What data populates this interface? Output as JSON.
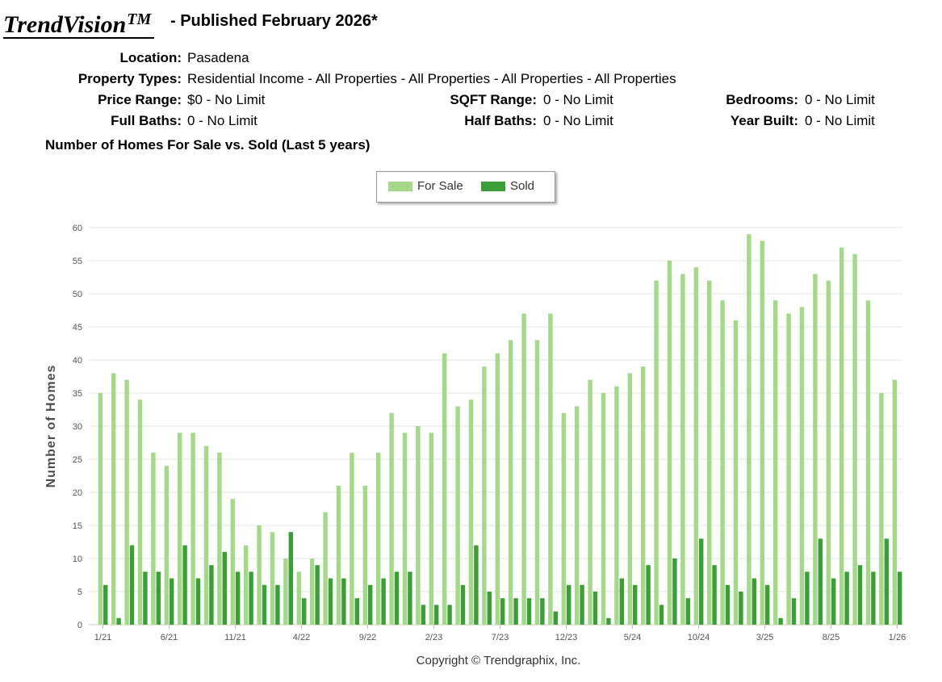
{
  "header": {
    "brand": "TrendVision",
    "brand_tm": "TM",
    "published": "- Published February 2026*"
  },
  "filters": {
    "location_label": "Location:",
    "location": "Pasadena",
    "property_types_label": "Property Types:",
    "property_types": "Residential Income - All Properties - All Properties - All Properties - All Properties",
    "price_range_label": "Price Range:",
    "price_range": "$0 - No Limit",
    "sqft_range_label": "SQFT Range:",
    "sqft_range": "0 - No Limit",
    "bedrooms_label": "Bedrooms:",
    "bedrooms": "0 - No Limit",
    "full_baths_label": "Full Baths:",
    "full_baths": "0 - No Limit",
    "half_baths_label": "Half Baths:",
    "half_baths": "0 - No Limit",
    "year_built_label": "Year Built:",
    "year_built": "0 - No Limit"
  },
  "chart_title": "Number of Homes For Sale vs. Sold (Last 5 years)",
  "copyright": "Copyright © Trendgraphix, Inc.",
  "colors": {
    "for_sale": "#a3d987",
    "sold": "#3a9f37",
    "grid": "#e6e6e6",
    "axis_text": "#555555"
  },
  "chart_data": {
    "type": "bar",
    "title": "Number of Homes For Sale vs. Sold (Last 5 years)",
    "ylabel": "Number of Homes",
    "xlabel": "",
    "ylim": [
      0,
      60
    ],
    "yticks": [
      0,
      5,
      10,
      15,
      20,
      25,
      30,
      35,
      40,
      45,
      50,
      55,
      60
    ],
    "legend_position": "top-center",
    "grid": true,
    "categories": [
      "1/21",
      "2/21",
      "3/21",
      "4/21",
      "5/21",
      "6/21",
      "7/21",
      "8/21",
      "9/21",
      "10/21",
      "11/21",
      "12/21",
      "1/22",
      "2/22",
      "3/22",
      "4/22",
      "5/22",
      "6/22",
      "7/22",
      "8/22",
      "9/22",
      "10/22",
      "11/22",
      "12/22",
      "1/23",
      "2/23",
      "3/23",
      "4/23",
      "5/23",
      "6/23",
      "7/23",
      "8/23",
      "9/23",
      "10/23",
      "11/23",
      "12/23",
      "1/24",
      "2/24",
      "3/24",
      "4/24",
      "5/24",
      "6/24",
      "7/24",
      "8/24",
      "9/24",
      "10/24",
      "11/24",
      "12/24",
      "1/25",
      "2/25",
      "3/25",
      "4/25",
      "5/25",
      "6/25",
      "7/25",
      "8/25",
      "9/25",
      "10/25",
      "11/25",
      "12/25",
      "1/26"
    ],
    "tick_labels": [
      "1/21",
      "6/21",
      "11/21",
      "4/22",
      "9/22",
      "2/23",
      "7/23",
      "12/23",
      "5/24",
      "10/24",
      "3/25",
      "8/25",
      "1/26"
    ],
    "series": [
      {
        "name": "For Sale",
        "values": [
          35,
          38,
          37,
          34,
          26,
          24,
          29,
          29,
          27,
          26,
          19,
          12,
          15,
          14,
          10,
          8,
          10,
          17,
          21,
          26,
          21,
          26,
          32,
          29,
          30,
          29,
          41,
          33,
          34,
          39,
          41,
          43,
          47,
          43,
          47,
          32,
          33,
          37,
          35,
          36,
          38,
          39,
          52,
          55,
          53,
          54,
          52,
          49,
          46,
          59,
          58,
          49,
          47,
          48,
          53,
          52,
          57,
          56,
          49,
          35,
          37
        ]
      },
      {
        "name": "Sold",
        "values": [
          6,
          1,
          12,
          8,
          8,
          7,
          12,
          7,
          9,
          11,
          8,
          8,
          6,
          6,
          14,
          4,
          9,
          7,
          7,
          4,
          6,
          7,
          8,
          8,
          3,
          3,
          3,
          6,
          12,
          5,
          4,
          4,
          4,
          4,
          2,
          6,
          6,
          5,
          1,
          7,
          6,
          9,
          3,
          10,
          4,
          13,
          9,
          6,
          5,
          7,
          6,
          1,
          4,
          8,
          13,
          7,
          8,
          9,
          8,
          13,
          8
        ]
      }
    ]
  }
}
